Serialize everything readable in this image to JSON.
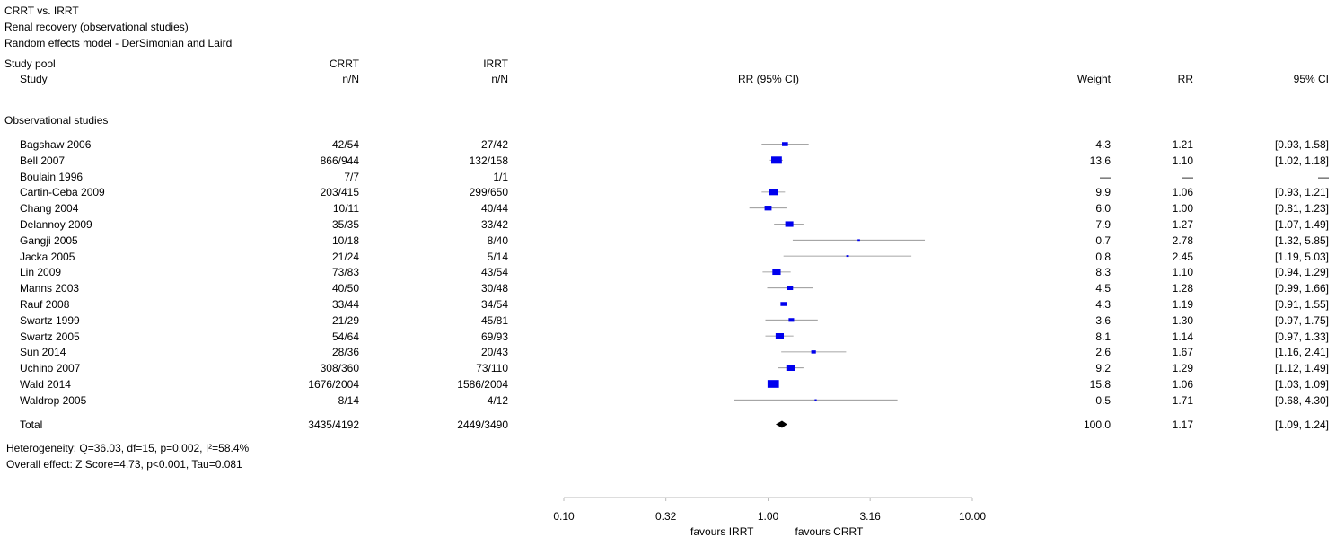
{
  "header": {
    "line1": "CRRT vs. IRRT",
    "line2": "Renal recovery (observational studies)",
    "line3": "Random effects model - DerSimonian and Laird"
  },
  "columns": {
    "study_pool": "Study pool",
    "study": "Study",
    "crrt": "CRRT",
    "crrt_sub": "n/N",
    "irrt": "IRRT",
    "irrt_sub": "n/N",
    "rr_ci": "RR (95% CI)",
    "weight": "Weight",
    "rr": "RR",
    "ci": "95% CI"
  },
  "group_label": "Observational studies",
  "total": {
    "label": "Total",
    "crrt": "3435/4192",
    "irrt": "2449/3490",
    "weight": "100.0",
    "rr": "1.17",
    "ci": "[1.09, 1.24]"
  },
  "heterogeneity": "Heterogeneity: Q=36.03, df=15, p=0.002, I²=58.4%",
  "overall_effect": "Overall effect: Z Score=4.73, p<0.001, Tau=0.081",
  "axis": {
    "ticks": [
      "0.10",
      "0.32",
      "1.00",
      "3.16",
      "10.00"
    ],
    "favours_left": "favours IRRT",
    "favours_right": "favours CRRT"
  },
  "chart_data": {
    "type": "forest",
    "scale": "log",
    "xlim": [
      0.1,
      10.0
    ],
    "tick_values": [
      0.1,
      0.316,
      1.0,
      3.16,
      10.0
    ],
    "marker_color": "#0000ee",
    "summary_color": "#000000",
    "studies": [
      {
        "name": "Bagshaw 2006",
        "crrt": "42/54",
        "irrt": "27/42",
        "weight": "4.3",
        "rr_text": "1.21",
        "ci_text": "[0.93, 1.58]",
        "rr": 1.21,
        "lo": 0.93,
        "hi": 1.58,
        "w": 4.3
      },
      {
        "name": "Bell 2007",
        "crrt": "866/944",
        "irrt": "132/158",
        "weight": "13.6",
        "rr_text": "1.10",
        "ci_text": "[1.02, 1.18]",
        "rr": 1.1,
        "lo": 1.02,
        "hi": 1.18,
        "w": 13.6
      },
      {
        "name": "Boulain 1996",
        "crrt": "7/7",
        "irrt": "1/1",
        "weight": "—",
        "rr_text": "—",
        "ci_text": "—",
        "rr": null,
        "lo": null,
        "hi": null,
        "w": null
      },
      {
        "name": "Cartin-Ceba 2009",
        "crrt": "203/415",
        "irrt": "299/650",
        "weight": "9.9",
        "rr_text": "1.06",
        "ci_text": "[0.93, 1.21]",
        "rr": 1.06,
        "lo": 0.93,
        "hi": 1.21,
        "w": 9.9
      },
      {
        "name": "Chang 2004",
        "crrt": "10/11",
        "irrt": "40/44",
        "weight": "6.0",
        "rr_text": "1.00",
        "ci_text": "[0.81, 1.23]",
        "rr": 1.0,
        "lo": 0.81,
        "hi": 1.23,
        "w": 6.0
      },
      {
        "name": "Delannoy 2009",
        "crrt": "35/35",
        "irrt": "33/42",
        "weight": "7.9",
        "rr_text": "1.27",
        "ci_text": "[1.07, 1.49]",
        "rr": 1.27,
        "lo": 1.07,
        "hi": 1.49,
        "w": 7.9
      },
      {
        "name": "Gangji 2005",
        "crrt": "10/18",
        "irrt": "8/40",
        "weight": "0.7",
        "rr_text": "2.78",
        "ci_text": "[1.32, 5.85]",
        "rr": 2.78,
        "lo": 1.32,
        "hi": 5.85,
        "w": 0.7
      },
      {
        "name": "Jacka 2005",
        "crrt": "21/24",
        "irrt": "5/14",
        "weight": "0.8",
        "rr_text": "2.45",
        "ci_text": "[1.19, 5.03]",
        "rr": 2.45,
        "lo": 1.19,
        "hi": 5.03,
        "w": 0.8
      },
      {
        "name": "Lin 2009",
        "crrt": "73/83",
        "irrt": "43/54",
        "weight": "8.3",
        "rr_text": "1.10",
        "ci_text": "[0.94, 1.29]",
        "rr": 1.1,
        "lo": 0.94,
        "hi": 1.29,
        "w": 8.3
      },
      {
        "name": "Manns 2003",
        "crrt": "40/50",
        "irrt": "30/48",
        "weight": "4.5",
        "rr_text": "1.28",
        "ci_text": "[0.99, 1.66]",
        "rr": 1.28,
        "lo": 0.99,
        "hi": 1.66,
        "w": 4.5
      },
      {
        "name": "Rauf 2008",
        "crrt": "33/44",
        "irrt": "34/54",
        "weight": "4.3",
        "rr_text": "1.19",
        "ci_text": "[0.91, 1.55]",
        "rr": 1.19,
        "lo": 0.91,
        "hi": 1.55,
        "w": 4.3
      },
      {
        "name": "Swartz 1999",
        "crrt": "21/29",
        "irrt": "45/81",
        "weight": "3.6",
        "rr_text": "1.30",
        "ci_text": "[0.97, 1.75]",
        "rr": 1.3,
        "lo": 0.97,
        "hi": 1.75,
        "w": 3.6
      },
      {
        "name": "Swartz 2005",
        "crrt": "54/64",
        "irrt": "69/93",
        "weight": "8.1",
        "rr_text": "1.14",
        "ci_text": "[0.97, 1.33]",
        "rr": 1.14,
        "lo": 0.97,
        "hi": 1.33,
        "w": 8.1
      },
      {
        "name": "Sun 2014",
        "crrt": "28/36",
        "irrt": "20/43",
        "weight": "2.6",
        "rr_text": "1.67",
        "ci_text": "[1.16, 2.41]",
        "rr": 1.67,
        "lo": 1.16,
        "hi": 2.41,
        "w": 2.6
      },
      {
        "name": "Uchino 2007",
        "crrt": "308/360",
        "irrt": "73/110",
        "weight": "9.2",
        "rr_text": "1.29",
        "ci_text": "[1.12, 1.49]",
        "rr": 1.29,
        "lo": 1.12,
        "hi": 1.49,
        "w": 9.2
      },
      {
        "name": "Wald 2014",
        "crrt": "1676/2004",
        "irrt": "1586/2004",
        "weight": "15.8",
        "rr_text": "1.06",
        "ci_text": "[1.03, 1.09]",
        "rr": 1.06,
        "lo": 1.03,
        "hi": 1.09,
        "w": 15.8
      },
      {
        "name": "Waldrop 2005",
        "crrt": "8/14",
        "irrt": "4/12",
        "weight": "0.5",
        "rr_text": "1.71",
        "ci_text": "[0.68, 4.30]",
        "rr": 1.71,
        "lo": 0.68,
        "hi": 4.3,
        "w": 0.5
      }
    ],
    "summary": {
      "rr": 1.17,
      "lo": 1.09,
      "hi": 1.24
    }
  }
}
